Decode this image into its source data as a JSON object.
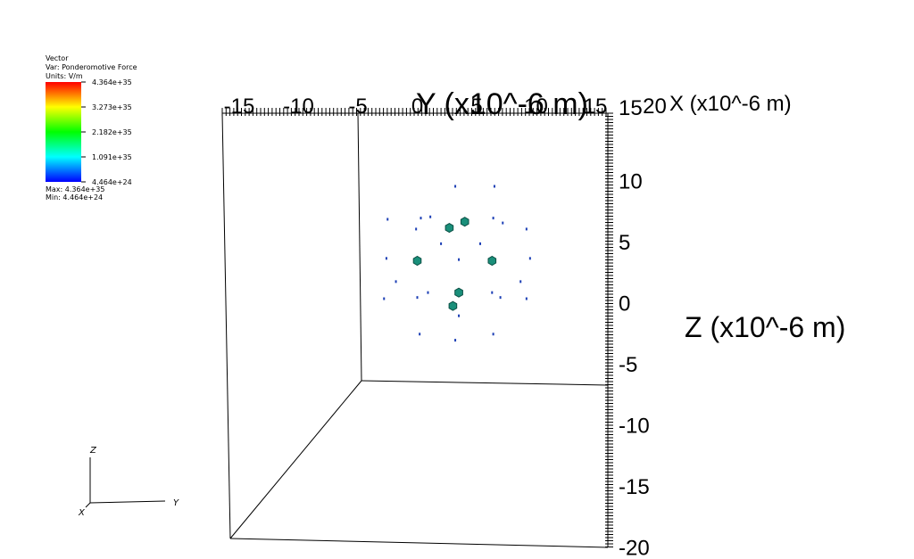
{
  "legend": {
    "line1": "Vector",
    "line2": "Var: Ponderomotive Force",
    "line3": "Units: V/m",
    "ticks": [
      "4.364e+35",
      "3.273e+35",
      "2.182e+35",
      "1.091e+35",
      "4.464e+24"
    ],
    "max_label": "Max:  4.364e+35",
    "min_label": "Min:  4.464e+24",
    "colors": [
      "#ff0000",
      "#ffff00",
      "#00ff00",
      "#00ffff",
      "#0000ff"
    ]
  },
  "triad": {
    "x": "X",
    "y": "Y",
    "z": "Z"
  },
  "chart_data": {
    "type": "scatter",
    "variable": "Ponderomotive Force",
    "units": "V/m",
    "color_range": [
      4.464e+24,
      4.364e+35
    ],
    "x_axis": {
      "label": "X (x10^-6 m)",
      "ticks": [
        "-15",
        "-10",
        "-5",
        "0",
        "5",
        "10",
        "15",
        "20"
      ]
    },
    "y_axis": {
      "label": "Y (x10^-6 m)",
      "ticks": [
        "15"
      ]
    },
    "z_axis": {
      "label": "Z (x10^-6 m)",
      "ticks": [
        "15",
        "10",
        "5",
        "0",
        "-5",
        "-10",
        "-15",
        "-20"
      ]
    },
    "glyph_color": "#1a8f7a",
    "large_glyphs": [
      {
        "x": 4.0,
        "z": 6.7
      },
      {
        "x": 2.7,
        "z": 6.2
      },
      {
        "x": 0.0,
        "z": 3.5
      },
      {
        "x": 6.3,
        "z": 3.5
      },
      {
        "x": 3.5,
        "z": 0.9
      },
      {
        "x": 3.0,
        "z": -0.2
      }
    ],
    "small_glyphs": [
      {
        "x": 3.2,
        "z": 9.6
      },
      {
        "x": 6.5,
        "z": 9.6
      },
      {
        "x": -2.5,
        "z": 6.9
      },
      {
        "x": 0.3,
        "z": 7.0
      },
      {
        "x": 6.4,
        "z": 7.0
      },
      {
        "x": 1.1,
        "z": 7.1
      },
      {
        "x": 7.2,
        "z": 6.6
      },
      {
        "x": -0.1,
        "z": 6.1
      },
      {
        "x": 9.2,
        "z": 6.1
      },
      {
        "x": 2.0,
        "z": 4.9
      },
      {
        "x": 5.3,
        "z": 4.9
      },
      {
        "x": -2.6,
        "z": 3.7
      },
      {
        "x": 9.5,
        "z": 3.7
      },
      {
        "x": 3.5,
        "z": 3.6
      },
      {
        "x": -1.8,
        "z": 1.8
      },
      {
        "x": 8.7,
        "z": 1.8
      },
      {
        "x": 0.0,
        "z": 0.5
      },
      {
        "x": 7.0,
        "z": 0.5
      },
      {
        "x": 9.2,
        "z": 0.4
      },
      {
        "x": -2.8,
        "z": 0.4
      },
      {
        "x": 6.3,
        "z": 0.9
      },
      {
        "x": 0.9,
        "z": 0.9
      },
      {
        "x": 0.2,
        "z": -2.5
      },
      {
        "x": 6.4,
        "z": -2.5
      },
      {
        "x": 3.5,
        "z": -1.0
      },
      {
        "x": 3.2,
        "z": -3.0
      }
    ]
  }
}
